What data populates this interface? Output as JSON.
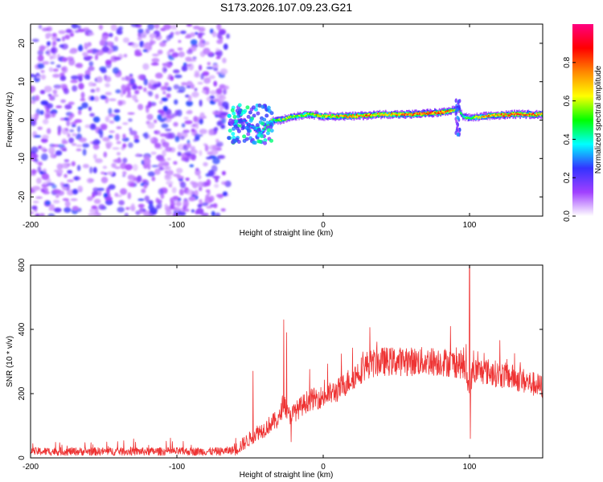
{
  "chart_data": [
    {
      "type": "heatmap",
      "title": "S173.2026.107.09.23.G21",
      "xlabel": "Height of straight line (km)",
      "ylabel": "Frequency (Hz)",
      "xlim": [
        -200,
        150
      ],
      "ylim": [
        -25,
        25
      ],
      "xticks": [
        -200,
        -100,
        0,
        100
      ],
      "yticks": [
        -20,
        -10,
        0,
        10,
        20
      ],
      "colorbar": {
        "label": "Normalized spectral amplitude",
        "range": [
          0,
          1
        ],
        "ticks": [
          "0.0",
          "0.2",
          "0.4",
          "0.6",
          "0.8"
        ],
        "colors": [
          "#ffffff",
          "#a040ff",
          "#3333ff",
          "#00ffff",
          "#00ff00",
          "#ffff00",
          "#ff8800",
          "#ff0000",
          "#ff0080"
        ]
      },
      "noise_region_km": [
        -200,
        -65
      ],
      "ridge": {
        "x_km": [
          -65,
          -55,
          -48,
          -43,
          -40,
          -35,
          -30,
          -20,
          -10,
          0,
          20,
          40,
          60,
          80,
          88,
          92,
          95,
          100,
          110,
          130,
          150
        ],
        "freq_hz": [
          -1,
          0,
          -2,
          -3.5,
          -2,
          0,
          0,
          1,
          1.5,
          1,
          1,
          1.5,
          1.5,
          2,
          2.5,
          3,
          1,
          0.5,
          1,
          1.5,
          1.5
        ],
        "amplitude": [
          0.25,
          0.3,
          0.35,
          0.45,
          0.5,
          0.55,
          0.6,
          0.6,
          0.65,
          0.7,
          0.85,
          0.75,
          0.9,
          0.9,
          0.7,
          0.5,
          0.5,
          0.55,
          0.75,
          0.9,
          0.8
        ]
      }
    },
    {
      "type": "line",
      "xlabel": "Height of straight line (km)",
      "ylabel": "SNR (10 * v/v)",
      "xlim": [
        -200,
        150
      ],
      "ylim": [
        0,
        600
      ],
      "xticks": [
        -200,
        -100,
        0,
        100
      ],
      "yticks": [
        0,
        200,
        400,
        600
      ],
      "series": [
        {
          "name": "SNR",
          "color": "#ee3333",
          "envelope_x": [
            -200,
            -150,
            -100,
            -70,
            -60,
            -50,
            -45,
            -40,
            -35,
            -30,
            -27,
            -24,
            -20,
            -10,
            0,
            10,
            20,
            30,
            40,
            60,
            80,
            95,
            98,
            100,
            102,
            110,
            130,
            150
          ],
          "envelope_y": [
            20,
            20,
            20,
            20,
            25,
            60,
            80,
            90,
            110,
            120,
            180,
            130,
            140,
            180,
            190,
            210,
            250,
            290,
            300,
            300,
            300,
            290,
            260,
            200,
            270,
            270,
            250,
            220
          ],
          "noise_amplitude": 18,
          "spikes": [
            {
              "x": -48,
              "y": 270
            },
            {
              "x": -27,
              "y": 430
            },
            {
              "x": -25,
              "y": 390
            },
            {
              "x": -22,
              "y": 50
            },
            {
              "x": 100,
              "y": 605
            },
            {
              "x": 100.5,
              "y": 60
            }
          ]
        }
      ]
    }
  ]
}
